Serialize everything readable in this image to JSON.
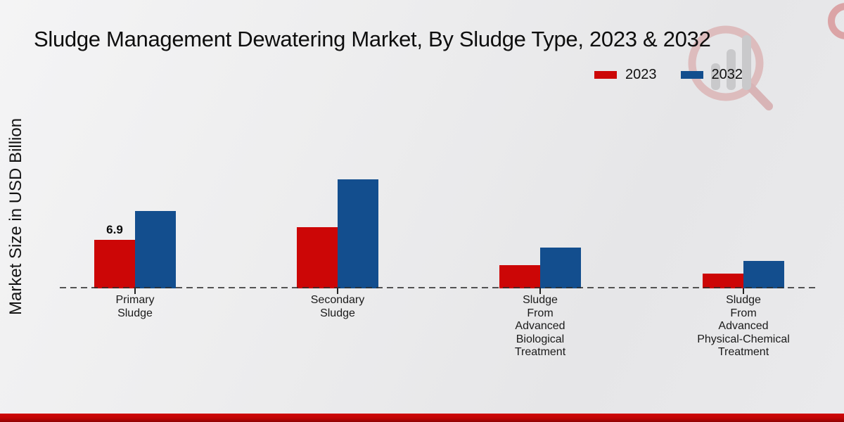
{
  "title": "Sludge Management Dewatering Market, By Sludge Type, 2023 & 2032",
  "y_axis_label": "Market Size in USD Billion",
  "legend": [
    {
      "label": "2023",
      "color": "#cc0606"
    },
    {
      "label": "2032",
      "color": "#134e8e"
    }
  ],
  "colors": {
    "series_2023": "#cc0606",
    "series_2032": "#134e8e",
    "footer_bar": "#c00505",
    "baseline_dash": "#2d2d2d",
    "background": "#ebebec"
  },
  "watermark": {
    "name": "market-research-magnifier-logo",
    "bar_color": "#c9c9cb",
    "ring_color": "#ddbcbd"
  },
  "chart_data": {
    "type": "bar",
    "categories": [
      "Primary Sludge",
      "Secondary Sludge",
      "Sludge From Advanced Biological Treatment",
      "Sludge From Advanced Physical-Chemical Treatment"
    ],
    "category_label_lines": [
      [
        "Primary",
        "Sludge"
      ],
      [
        "Secondary",
        "Sludge"
      ],
      [
        "Sludge",
        "From",
        "Advanced",
        "Biological",
        "Treatment"
      ],
      [
        "Sludge",
        "From",
        "Advanced",
        "Physical-Chemical",
        "Treatment"
      ]
    ],
    "series": [
      {
        "name": "2023",
        "color": "#cc0606",
        "values": [
          6.9,
          8.7,
          3.3,
          2.1
        ]
      },
      {
        "name": "2032",
        "color": "#134e8e",
        "values": [
          11.0,
          15.5,
          5.8,
          3.9
        ]
      }
    ],
    "data_labels": [
      {
        "series": "2023",
        "category_index": 0,
        "text": "6.9"
      }
    ],
    "title": "Sludge Management Dewatering Market, By Sludge Type, 2023 & 2032",
    "xlabel": "",
    "ylabel": "Market Size in USD Billion",
    "ylim": [
      0,
      17
    ],
    "grid": false,
    "y_axis_ticks_visible": false,
    "baseline_style": "dashed",
    "legend_position": "top-right"
  }
}
